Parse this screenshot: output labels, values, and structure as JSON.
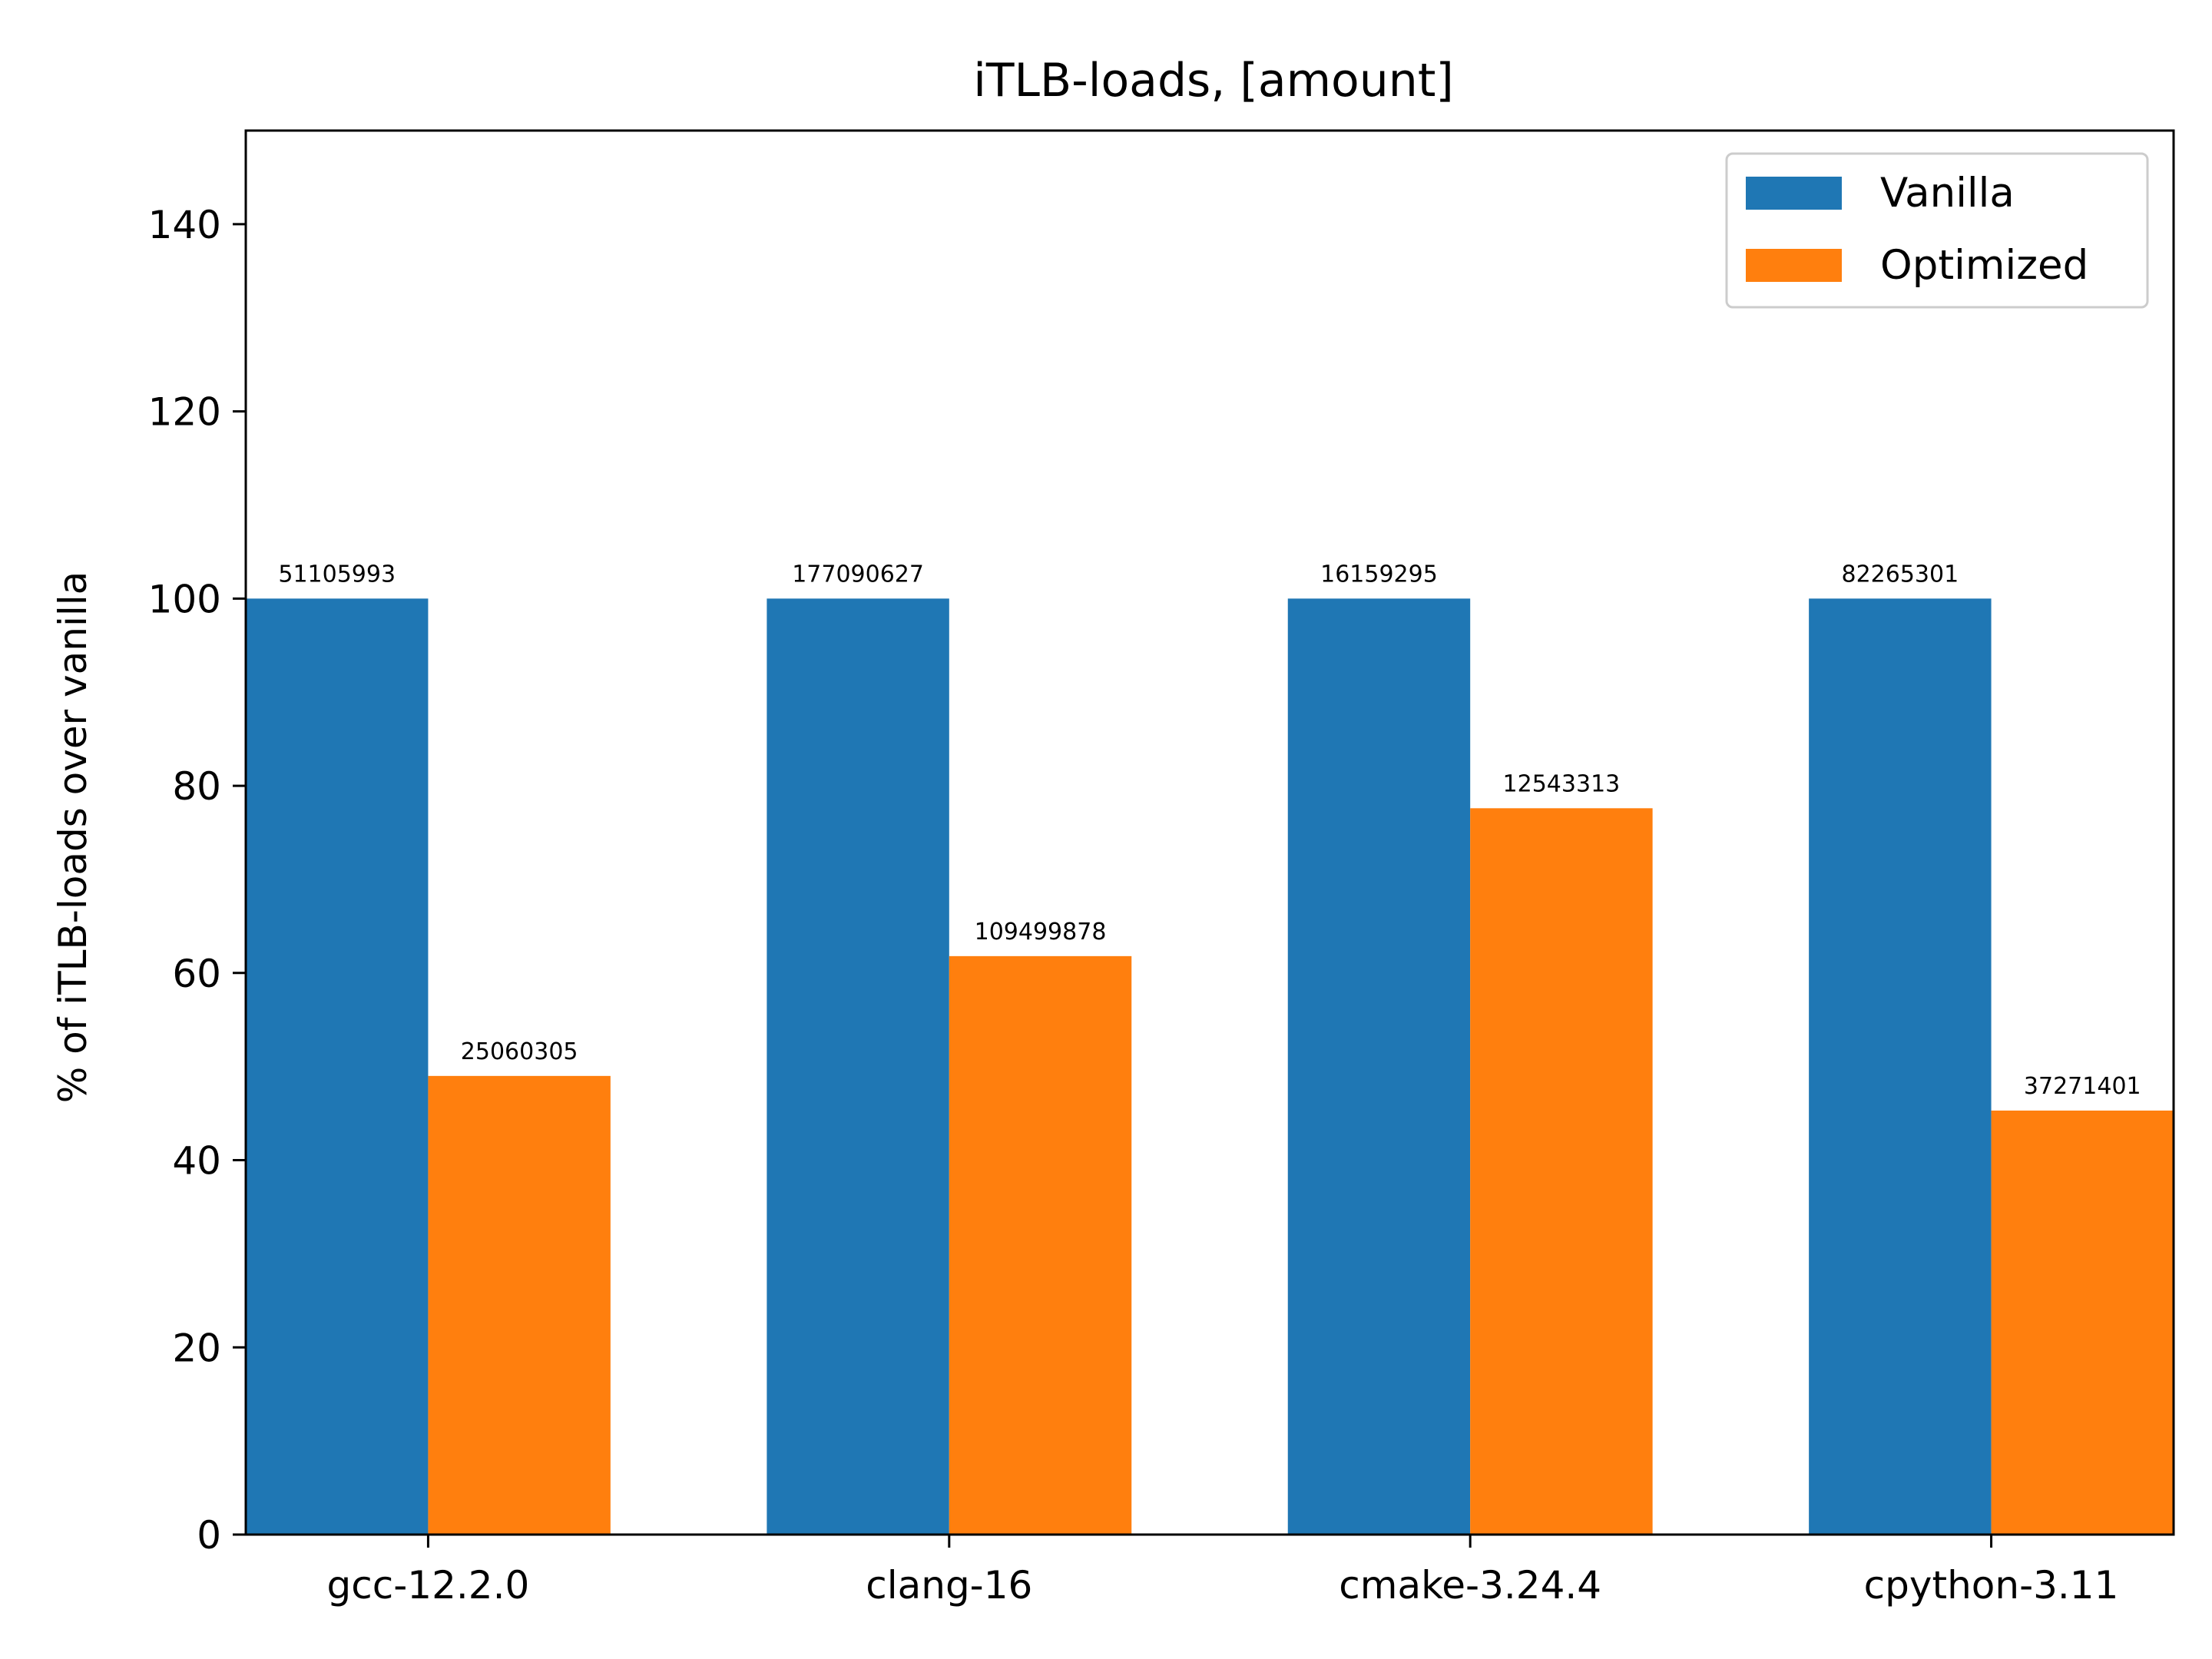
{
  "chart_data": {
    "type": "bar",
    "title": "iTLB-loads, [amount]",
    "xlabel": "",
    "ylabel": "% of iTLB-loads over vanilla",
    "ylim": [
      0,
      150
    ],
    "yticks": [
      "0",
      "20",
      "40",
      "60",
      "80",
      "100",
      "120",
      "140"
    ],
    "ytick_values": [
      0,
      20,
      40,
      60,
      80,
      100,
      120,
      140
    ],
    "categories": [
      "gcc-12.2.0",
      "clang-16",
      "cmake-3.24.4",
      "cpython-3.11"
    ],
    "grid": false,
    "legend_position": "top-right",
    "series": [
      {
        "name": "Vanilla",
        "color": "#1f77b4",
        "values": [
          100,
          100,
          100,
          100
        ],
        "labels": [
          "51105993",
          "177090627",
          "16159295",
          "82265301"
        ]
      },
      {
        "name": "Optimized",
        "color": "#ff7f0e",
        "values": [
          49.0,
          61.8,
          77.6,
          45.3
        ],
        "labels": [
          "25060305",
          "109499878",
          "12543313",
          "37271401"
        ]
      }
    ]
  }
}
